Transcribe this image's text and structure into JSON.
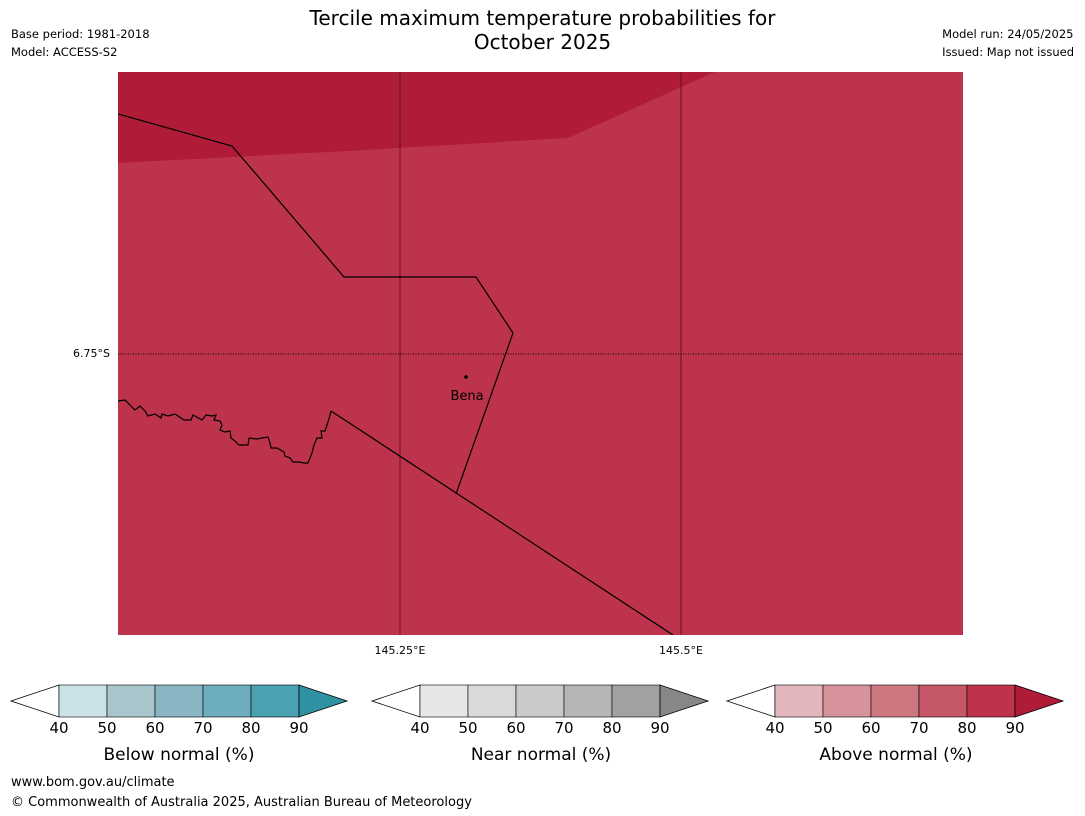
{
  "title_line1": "Tercile maximum temperature probabilities for",
  "title_line2": "October 2025",
  "meta_left": [
    "Base period: 1981-2018",
    "Model: ACCESS-S2"
  ],
  "meta_right": [
    "Model run: 24/05/2025",
    "Issued: Map not issued"
  ],
  "map": {
    "lat_label": "6.75°S",
    "lon_labels": [
      "145.25°E",
      "145.5°E"
    ],
    "place_label": "Bena",
    "colors": {
      "high": "#b01c38",
      "main": "#bd334b"
    }
  },
  "colorbars": [
    {
      "label": "Below normal (%)",
      "ticks": [
        "40",
        "50",
        "60",
        "70",
        "80",
        "90"
      ],
      "colors": [
        "#cbe2e8",
        "#a8c6cc",
        "#8ab5c2",
        "#6eadbd",
        "#4aa1b1",
        "#2f91a2"
      ]
    },
    {
      "label": "Near normal (%)",
      "ticks": [
        "40",
        "50",
        "60",
        "70",
        "80",
        "90"
      ],
      "colors": [
        "#e6e6e6",
        "#d9d9d9",
        "#cacaca",
        "#b6b6b6",
        "#a1a1a1",
        "#878787"
      ]
    },
    {
      "label": "Above normal (%)",
      "ticks": [
        "40",
        "50",
        "60",
        "70",
        "80",
        "90"
      ],
      "colors": [
        "#e2b6bc",
        "#d6939b",
        "#cd7881",
        "#c65768",
        "#bd334b",
        "#b01c38"
      ]
    }
  ],
  "footer": [
    "www.bom.gov.au/climate",
    "© Commonwealth of Australia 2025, Australian Bureau of Meteorology"
  ]
}
